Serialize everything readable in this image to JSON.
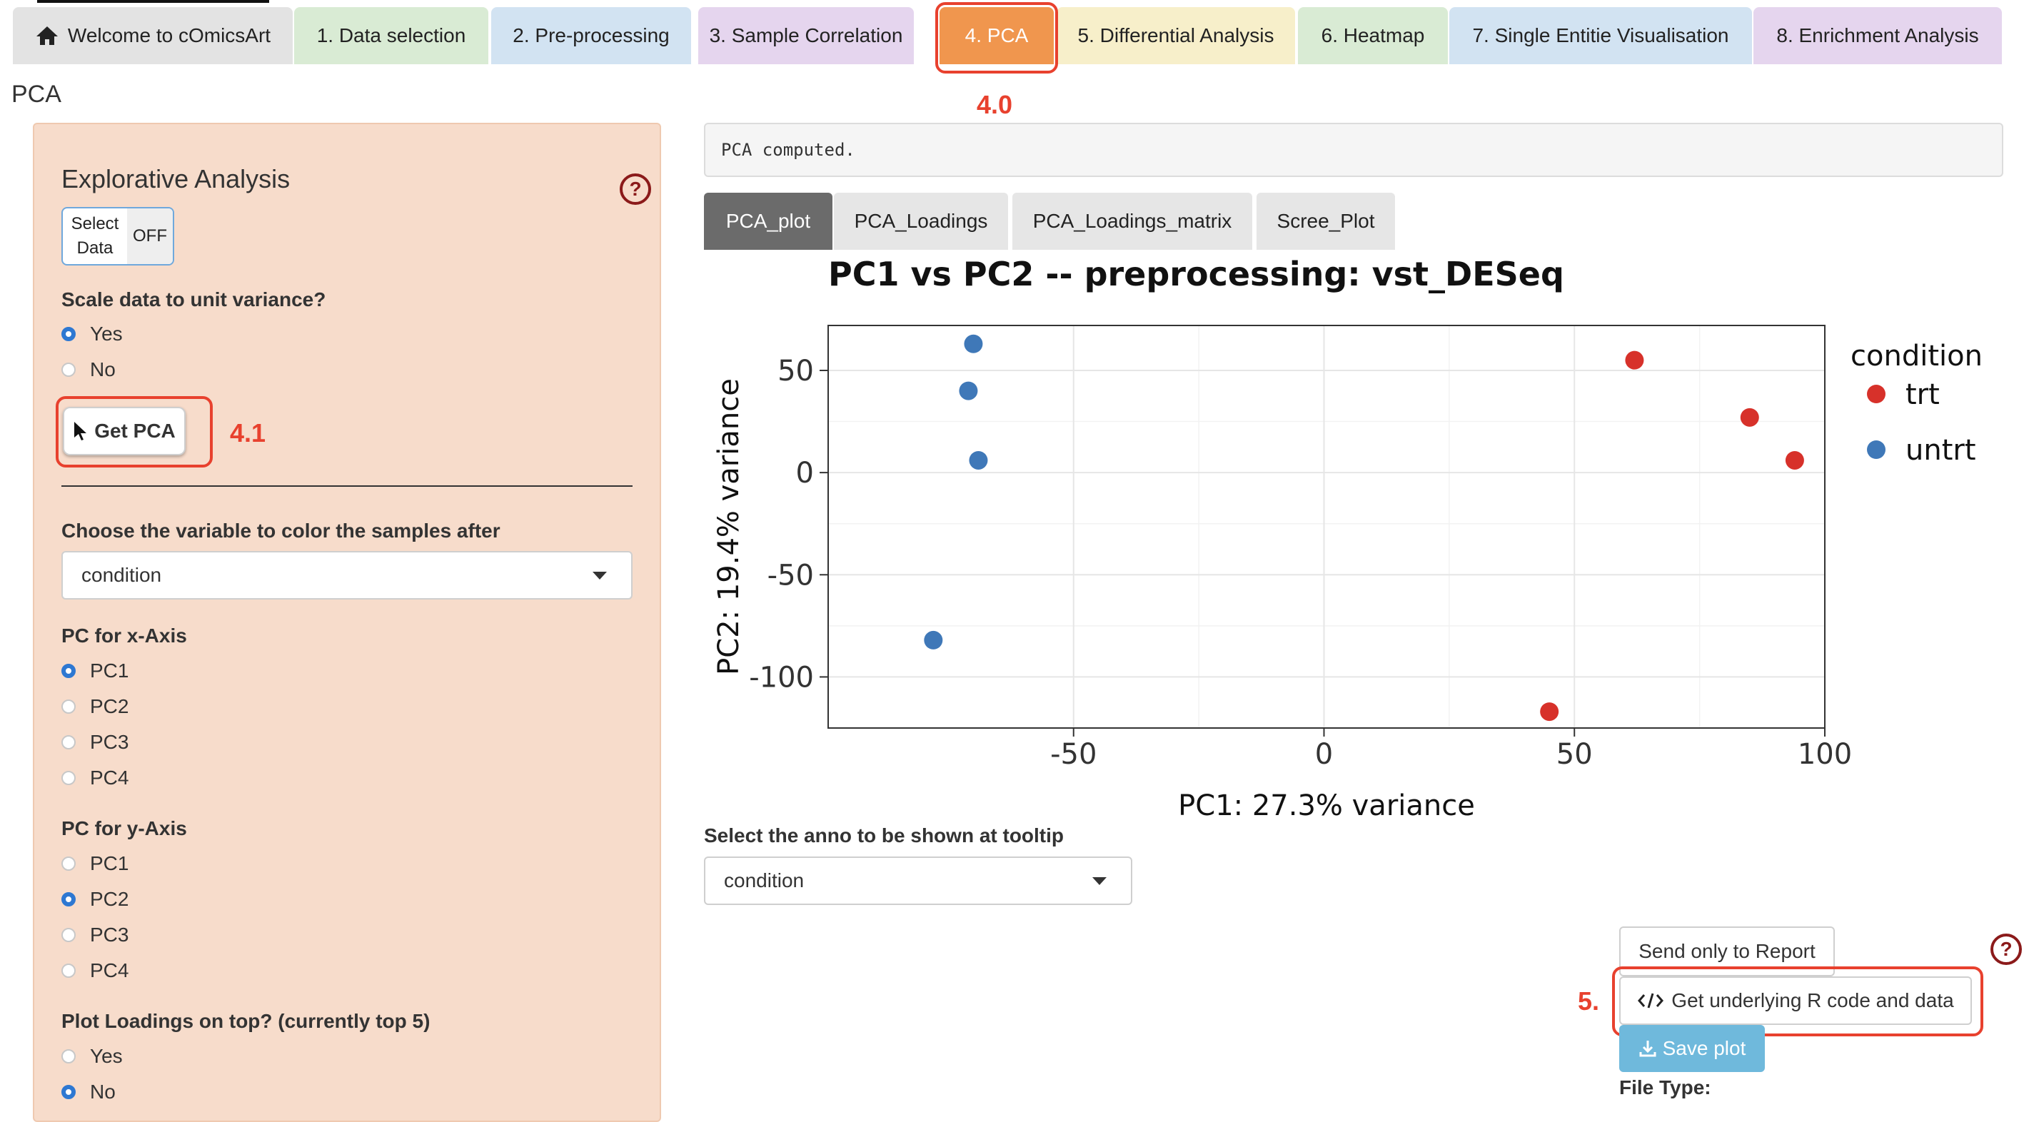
{
  "nav": {
    "tabs": [
      {
        "label": "Welcome to cOmicsArt",
        "bg": "#e3e3e3"
      },
      {
        "label": "1. Data selection",
        "bg": "#d9ebd4"
      },
      {
        "label": "2. Pre-processing",
        "bg": "#d2e3f2"
      },
      {
        "label": "3. Sample Correlation",
        "bg": "#e5d5ee"
      },
      {
        "label": "4. PCA",
        "bg": "#f0964e",
        "active": true
      },
      {
        "label": "5. Differential Analysis",
        "bg": "#f7efca"
      },
      {
        "label": "6. Heatmap",
        "bg": "#d9ebd4"
      },
      {
        "label": "7. Single Entitie Visualisation",
        "bg": "#d2e3f2"
      },
      {
        "label": "8. Enrichment Analysis",
        "bg": "#e5d5ee"
      }
    ]
  },
  "page": {
    "title": "PCA"
  },
  "annotations": {
    "tab_step": "4.0",
    "get_pca_step": "4.1",
    "rcode_step": "5."
  },
  "sidebar": {
    "heading": "Explorative Analysis",
    "help": "?",
    "toggle": {
      "label_line1": "Select",
      "label_line2": "Data",
      "state": "OFF"
    },
    "scale": {
      "label": "Scale data to unit variance?",
      "options": [
        "Yes",
        "No"
      ],
      "selected": "Yes"
    },
    "get_pca_label": "Get PCA",
    "color_by": {
      "label": "Choose the variable to color the samples after",
      "value": "condition"
    },
    "pc_x": {
      "label": "PC for x-Axis",
      "options": [
        "PC1",
        "PC2",
        "PC3",
        "PC4"
      ],
      "selected": "PC1"
    },
    "pc_y": {
      "label": "PC for y-Axis",
      "options": [
        "PC1",
        "PC2",
        "PC3",
        "PC4"
      ],
      "selected": "PC2"
    },
    "loadings": {
      "label": "Plot Loadings on top? (currently top 5)",
      "options": [
        "Yes",
        "No"
      ],
      "selected": "No"
    }
  },
  "main": {
    "status": "PCA computed.",
    "tabs": [
      "PCA_plot",
      "PCA_Loadings",
      "PCA_Loadings_matrix",
      "Scree_Plot"
    ],
    "active_tab": "PCA_plot",
    "tooltip": {
      "label": "Select the anno to be shown at tooltip",
      "value": "condition"
    },
    "buttons": {
      "send_report": "Send only to Report",
      "get_rcode": "Get underlying R code and data",
      "save_plot": "Save plot",
      "file_type": "File Type:"
    },
    "help": "?"
  },
  "chart_data": {
    "type": "scatter",
    "title": "PC1 vs PC2 -- preprocessing: vst_DESeq",
    "xlabel": "PC1: 27.3% variance",
    "ylabel": "PC2: 19.4% variance",
    "xlim": [
      -99,
      100
    ],
    "ylim": [
      -125,
      72
    ],
    "xticks": [
      -50,
      0,
      50,
      100
    ],
    "yticks": [
      50,
      0,
      -50,
      -100
    ],
    "grid": true,
    "legend": {
      "title": "condition",
      "position": "right"
    },
    "series": [
      {
        "name": "trt",
        "color": "#d7312a",
        "points": [
          {
            "x": 62,
            "y": 55
          },
          {
            "x": 85,
            "y": 27
          },
          {
            "x": 94,
            "y": 6
          },
          {
            "x": 45,
            "y": -117
          }
        ]
      },
      {
        "name": "untrt",
        "color": "#3f78b8",
        "points": [
          {
            "x": -70,
            "y": 63
          },
          {
            "x": -71,
            "y": 40
          },
          {
            "x": -69,
            "y": 6
          },
          {
            "x": -78,
            "y": -82
          }
        ]
      }
    ]
  }
}
